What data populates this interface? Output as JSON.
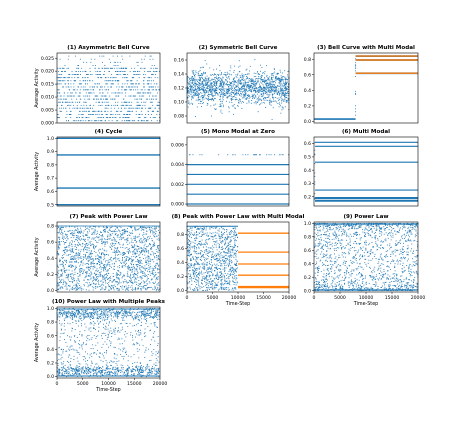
{
  "figure": {
    "colors": {
      "blue": "#1f77b4",
      "orange": "#ff7f0e",
      "axis": "#000000"
    },
    "ylabel": "Average Activity",
    "xlabel": "Time-Step"
  },
  "chart_data": [
    {
      "type": "scatter",
      "title": "(1) Asymmetric Bell Curve",
      "ylabel": "Average Activity",
      "xlabel": "",
      "xlim": [
        0,
        20000
      ],
      "ylim": [
        0,
        0.027
      ],
      "yticks": [
        0.0,
        0.005,
        0.01,
        0.015,
        0.02,
        0.025
      ],
      "ytick_labels": [
        "0.000",
        "0.005",
        "0.010",
        "0.015",
        "0.020",
        "0.025"
      ],
      "xticks": [],
      "xtick_labels": [],
      "series": [
        {
          "color": "#1f77b4",
          "values": [
            0.0009,
            0.0021,
            0.0033,
            0.0045,
            0.0057,
            0.0068,
            0.008,
            0.0092,
            0.0104,
            0.0116,
            0.0128,
            0.0139,
            0.0151,
            0.0163,
            0.0175,
            0.0187,
            0.0199,
            0.0211
          ],
          "sparse_values": [
            0.0222,
            0.0234,
            0.0246,
            0.0258
          ]
        }
      ]
    },
    {
      "type": "scatter",
      "title": "(2) Symmetric Bell Curve",
      "ylabel": "",
      "xlabel": "",
      "xlim": [
        0,
        20000
      ],
      "ylim": [
        0.07,
        0.17
      ],
      "yticks": [
        0.08,
        0.1,
        0.12,
        0.14,
        0.16
      ],
      "ytick_labels": [
        "0.08",
        "0.10",
        "0.12",
        "0.14",
        "0.16"
      ],
      "xticks": [],
      "xtick_labels": [],
      "series": [
        {
          "color": "#1f77b4",
          "mean": 0.12,
          "sd": 0.012
        }
      ]
    },
    {
      "type": "scatter",
      "title": "(3) Bell Curve with Multi Modal",
      "ylabel": "",
      "xlabel": "",
      "xlim": [
        0,
        20000
      ],
      "ylim": [
        -0.02,
        0.88
      ],
      "yticks": [
        0.0,
        0.2,
        0.4,
        0.6,
        0.8
      ],
      "ytick_labels": [
        "0.0",
        "0.2",
        "0.4",
        "0.6",
        "0.8"
      ],
      "xticks": [],
      "xtick_labels": [],
      "series": [
        {
          "color": "#1f77b4",
          "x_range": [
            0,
            8000
          ],
          "values": [
            0.03
          ]
        },
        {
          "color": "#1f77b4",
          "x_range": [
            8000,
            20000
          ],
          "values": [
            0.62,
            0.79,
            0.84
          ]
        },
        {
          "color": "#ff7f0e",
          "x_range": [
            8000,
            20000
          ],
          "values": [
            0.62,
            0.79,
            0.84
          ]
        }
      ]
    },
    {
      "type": "line",
      "title": "(4) Cycle",
      "ylabel": "Average Activity",
      "xlabel": "",
      "xlim": [
        0,
        20000
      ],
      "ylim": [
        0.49,
        1.01
      ],
      "yticks": [
        0.5,
        0.6,
        0.7,
        0.8,
        0.9,
        1.0
      ],
      "ytick_labels": [
        "0.5",
        "0.6",
        "0.7",
        "0.8",
        "0.9",
        "1.0"
      ],
      "xticks": [],
      "xtick_labels": [],
      "series": [
        {
          "color": "#1f77b4",
          "values": [
            0.5,
            0.625,
            0.875,
            1.0
          ]
        }
      ]
    },
    {
      "type": "scatter",
      "title": "(5) Mono Modal at Zero",
      "ylabel": "",
      "xlabel": "",
      "xlim": [
        0,
        20000
      ],
      "ylim": [
        -0.0002,
        0.0068
      ],
      "yticks": [
        0.0,
        0.002,
        0.004,
        0.006
      ],
      "ytick_labels": [
        "0.000",
        "0.002",
        "0.004",
        "0.006"
      ],
      "xticks": [],
      "xtick_labels": [],
      "series": [
        {
          "color": "#1f77b4",
          "values": [
            0.0,
            0.001,
            0.002,
            0.003,
            0.004
          ],
          "sparse_values": [
            0.005
          ]
        }
      ]
    },
    {
      "type": "scatter",
      "title": "(6) Multi Modal",
      "ylabel": "",
      "xlabel": "",
      "xlim": [
        0,
        20000
      ],
      "ylim": [
        0.13,
        0.65
      ],
      "yticks": [
        0.2,
        0.3,
        0.4,
        0.5,
        0.6
      ],
      "ytick_labels": [
        "0.2",
        "0.3",
        "0.4",
        "0.5",
        "0.6"
      ],
      "xticks": [],
      "xtick_labels": [],
      "series": [
        {
          "color": "#1f77b4",
          "values": [
            0.17,
            0.19,
            0.25,
            0.46,
            0.58,
            0.61
          ]
        }
      ]
    },
    {
      "type": "scatter",
      "title": "(7) Peak with Power Law",
      "ylabel": "Average Activity",
      "xlabel": "",
      "xlim": [
        0,
        20000
      ],
      "ylim": [
        -0.02,
        0.85
      ],
      "yticks": [
        0.0,
        0.2,
        0.4,
        0.6,
        0.8
      ],
      "ytick_labels": [
        "0.0",
        "0.2",
        "0.4",
        "0.6",
        "0.8"
      ],
      "xticks": [],
      "xtick_labels": [],
      "series": [
        {
          "color": "#1f77b4",
          "range": [
            0.0,
            0.8
          ]
        }
      ]
    },
    {
      "type": "scatter",
      "title": "(8) Peak with Power Law with Multi Modal",
      "ylabel": "",
      "xlabel": "Time-Step",
      "xlim": [
        0,
        20000
      ],
      "ylim": [
        -0.02,
        0.98
      ],
      "yticks": [
        0.0,
        0.2,
        0.4,
        0.6,
        0.8
      ],
      "ytick_labels": [
        "0.0",
        "0.2",
        "0.4",
        "0.6",
        "0.8"
      ],
      "xticks": [
        0,
        5000,
        10000,
        15000,
        20000
      ],
      "xtick_labels": [
        "0",
        "5000",
        "10000",
        "15000",
        "20000"
      ],
      "series": [
        {
          "color": "#1f77b4",
          "x_range": [
            0,
            10000
          ],
          "range": [
            0.0,
            0.92
          ]
        },
        {
          "color": "#ff7f0e",
          "x_range": [
            10000,
            20000
          ],
          "values": [
            0.05,
            0.22,
            0.38,
            0.55,
            0.82
          ]
        }
      ]
    },
    {
      "type": "scatter",
      "title": "(9) Power Law",
      "ylabel": "",
      "xlabel": "Time-Step",
      "xlim": [
        0,
        20000
      ],
      "ylim": [
        -0.02,
        1.02
      ],
      "yticks": [
        0.0,
        0.2,
        0.4,
        0.6,
        0.8,
        1.0
      ],
      "ytick_labels": [
        "0.0",
        "0.2",
        "0.4",
        "0.6",
        "0.8",
        "1.0"
      ],
      "xticks": [
        0,
        5000,
        10000,
        15000,
        20000
      ],
      "xtick_labels": [
        "0",
        "5000",
        "10000",
        "15000",
        "20000"
      ],
      "series": [
        {
          "color": "#1f77b4",
          "range": [
            0.0,
            1.0
          ],
          "concentration": "edges"
        }
      ]
    },
    {
      "type": "scatter",
      "title": "(10) Power Law with Multiple Peaks",
      "ylabel": "Average Activity",
      "xlabel": "Time-Step",
      "xlim": [
        0,
        20000
      ],
      "ylim": [
        -0.02,
        1.02
      ],
      "yticks": [
        0.0,
        0.2,
        0.4,
        0.6,
        0.8,
        1.0
      ],
      "ytick_labels": [
        "0.0",
        "0.2",
        "0.4",
        "0.6",
        "0.8",
        "1.0"
      ],
      "xticks": [
        0,
        5000,
        10000,
        15000,
        20000
      ],
      "xtick_labels": [
        "0",
        "5000",
        "10000",
        "15000",
        "20000"
      ],
      "series": [
        {
          "color": "#1f77b4",
          "range": [
            0.0,
            1.0
          ],
          "peaks": [
            0.08,
            0.92
          ]
        }
      ]
    }
  ]
}
